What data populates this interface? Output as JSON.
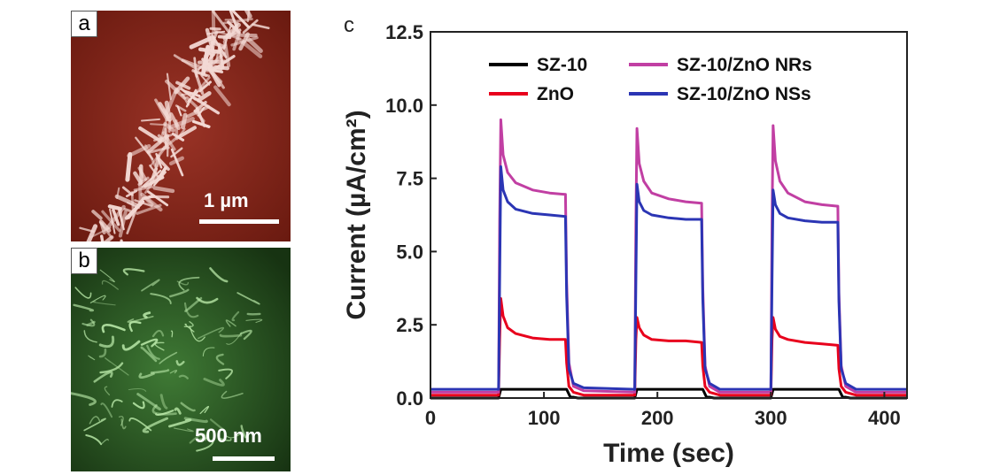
{
  "panels": {
    "a": {
      "letter": "a",
      "scale_label": "1 µm",
      "color": "#7a1f14"
    },
    "b": {
      "letter": "b",
      "scale_label": "500 nm",
      "color": "#1c3d17"
    },
    "c": {
      "letter": "c"
    }
  },
  "chart_data": {
    "type": "line",
    "xlabel": "Time (sec)",
    "ylabel": "Current (µA/cm²)",
    "xlim": [
      0,
      420
    ],
    "ylim": [
      0,
      12.5
    ],
    "xticks": [
      "0",
      "100",
      "200",
      "300",
      "400"
    ],
    "yticks": [
      "0.0",
      "2.5",
      "5.0",
      "7.5",
      "10.0",
      "12.5"
    ],
    "legend_position": "top",
    "series": [
      {
        "name": "SZ-10",
        "color": "#000000",
        "x": [
          0,
          60,
          62,
          65,
          80,
          100,
          120,
          123,
          130,
          180,
          182,
          185,
          200,
          220,
          240,
          243,
          250,
          300,
          302,
          305,
          320,
          340,
          360,
          363,
          370,
          420
        ],
        "y": [
          0.0,
          0.0,
          0.3,
          0.3,
          0.3,
          0.3,
          0.3,
          0.05,
          0.0,
          0.0,
          0.3,
          0.3,
          0.3,
          0.3,
          0.3,
          0.05,
          0.0,
          0.0,
          0.3,
          0.3,
          0.3,
          0.3,
          0.3,
          0.05,
          0.0,
          0.0
        ]
      },
      {
        "name": "ZnO",
        "color": "#e8001c",
        "x": [
          0,
          60,
          61,
          62,
          64,
          68,
          75,
          90,
          105,
          119,
          120,
          122,
          126,
          135,
          180,
          181,
          182,
          184,
          188,
          195,
          210,
          225,
          239,
          240,
          242,
          246,
          255,
          300,
          301,
          302,
          304,
          308,
          315,
          330,
          345,
          359,
          360,
          362,
          366,
          375,
          420
        ],
        "y": [
          0.1,
          0.1,
          2.0,
          3.4,
          2.8,
          2.4,
          2.2,
          2.05,
          2.0,
          2.0,
          1.2,
          0.4,
          0.2,
          0.1,
          0.1,
          2.0,
          2.75,
          2.4,
          2.15,
          2.0,
          1.95,
          1.95,
          1.9,
          1.1,
          0.4,
          0.2,
          0.1,
          0.1,
          2.0,
          2.75,
          2.35,
          2.1,
          2.0,
          1.9,
          1.85,
          1.8,
          1.0,
          0.4,
          0.2,
          0.1,
          0.1
        ]
      },
      {
        "name": "SZ-10/ZnO NRs",
        "color": "#c13fa3",
        "x": [
          0,
          60,
          61,
          62,
          64,
          68,
          75,
          90,
          105,
          119,
          120,
          122,
          126,
          135,
          180,
          181,
          182,
          184,
          188,
          195,
          210,
          225,
          239,
          240,
          242,
          246,
          255,
          300,
          301,
          302,
          304,
          308,
          315,
          330,
          345,
          359,
          360,
          362,
          366,
          375,
          420
        ],
        "y": [
          0.2,
          0.2,
          6.0,
          9.5,
          8.3,
          7.7,
          7.35,
          7.1,
          7.0,
          6.95,
          4.0,
          1.2,
          0.4,
          0.25,
          0.2,
          6.0,
          9.2,
          8.0,
          7.4,
          7.0,
          6.8,
          6.7,
          6.65,
          3.8,
          1.1,
          0.4,
          0.2,
          0.2,
          6.0,
          9.3,
          8.1,
          7.4,
          7.0,
          6.7,
          6.6,
          6.55,
          3.6,
          1.1,
          0.4,
          0.2,
          0.2
        ]
      },
      {
        "name": "SZ-10/ZnO NSs",
        "color": "#2b35b4",
        "x": [
          0,
          60,
          61,
          62,
          64,
          68,
          75,
          90,
          105,
          119,
          120,
          122,
          126,
          135,
          180,
          181,
          182,
          184,
          188,
          195,
          210,
          225,
          239,
          240,
          242,
          246,
          255,
          300,
          301,
          302,
          304,
          308,
          315,
          330,
          345,
          359,
          360,
          362,
          366,
          375,
          420
        ],
        "y": [
          0.3,
          0.3,
          4.0,
          7.9,
          7.1,
          6.7,
          6.45,
          6.3,
          6.25,
          6.2,
          3.5,
          1.0,
          0.5,
          0.35,
          0.3,
          4.0,
          7.3,
          6.7,
          6.4,
          6.25,
          6.15,
          6.1,
          6.1,
          3.4,
          1.0,
          0.5,
          0.3,
          0.3,
          4.0,
          7.1,
          6.6,
          6.3,
          6.15,
          6.05,
          6.0,
          6.0,
          3.3,
          1.0,
          0.5,
          0.3,
          0.3
        ]
      }
    ]
  }
}
